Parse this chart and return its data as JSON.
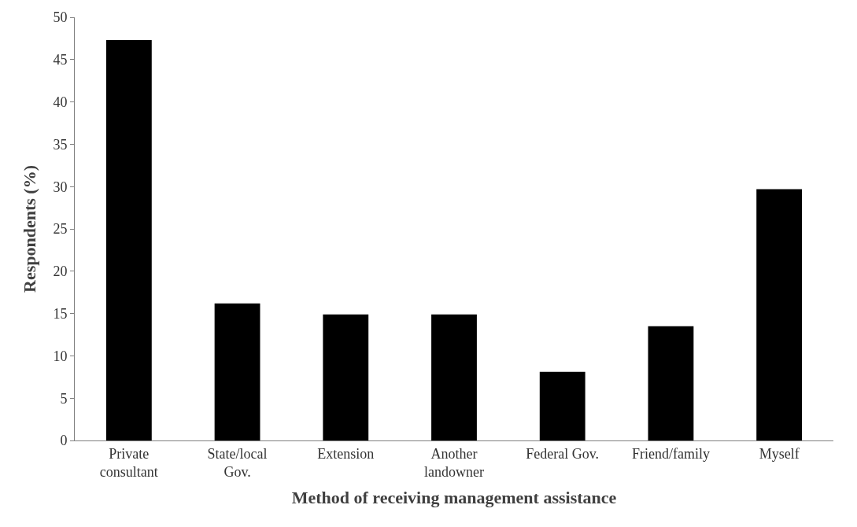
{
  "chart_data": {
    "type": "bar",
    "xlabel": "Method of receiving management assistance",
    "ylabel": "Respondents (%)",
    "categories": [
      "Private\nconsultant",
      "State/local\nGov.",
      "Extension",
      "Another\nlandowner",
      "Federal Gov.",
      "Friend/family",
      "Myself"
    ],
    "values": [
      47.3,
      16.2,
      14.9,
      14.9,
      8.1,
      13.5,
      29.7
    ],
    "color": "#000000",
    "ylim": [
      0,
      50
    ],
    "yticks": [
      0,
      5,
      10,
      15,
      20,
      25,
      30,
      35,
      40,
      45,
      50
    ]
  }
}
